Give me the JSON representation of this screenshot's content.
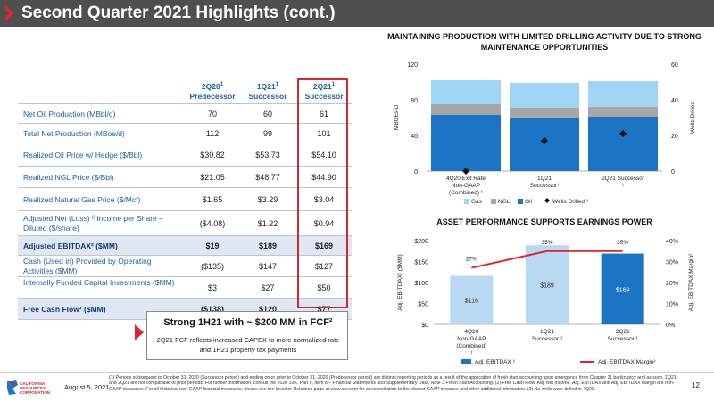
{
  "header": {
    "title": "Second Quarter 2021 Highlights (cont.)"
  },
  "table": {
    "columns": [
      {
        "period": "2Q20",
        "sup": "1",
        "sub": "Predecessor"
      },
      {
        "period": "1Q21",
        "sup": "1",
        "sub": "Successor"
      },
      {
        "period": "2Q21",
        "sup": "1",
        "sub": "Successor"
      }
    ],
    "rows": [
      {
        "label": "Net Oil Production (MBbl/d)",
        "values": [
          "70",
          "60",
          "61"
        ]
      },
      {
        "label": "Total Net Production (MBoe/d)",
        "values": [
          "112",
          "99",
          "101"
        ]
      },
      {
        "label": "Realized Oil Price w/ Hedge ($/Bbl)",
        "values": [
          "$30.82",
          "$53.73",
          "$54.10"
        ]
      },
      {
        "label": "Realized NGL Price ($/Bbl)",
        "values": [
          "$21.05",
          "$48.77",
          "$44.90"
        ]
      },
      {
        "label": "Realized Natural Gas Price ($/Mcf)",
        "values": [
          "$1.65",
          "$3.29",
          "$3.04"
        ]
      },
      {
        "label": "Adjusted Net (Loss) ² Income per Share – Diluted ($/share)",
        "values": [
          "($4.08)",
          "$1.22",
          "$0.94"
        ]
      },
      {
        "label": "Adjusted EBITDAX² ($MM)",
        "values": [
          "$19",
          "$189",
          "$169"
        ]
      },
      {
        "label": "Cash (Used in) Provided by Operating Activities ($MM)",
        "values": [
          "($135)",
          "$147",
          "$127"
        ]
      },
      {
        "label": "Internally Funded Capital Investments ($MM)",
        "values": [
          "$3",
          "$27",
          "$50"
        ]
      },
      {
        "label": "Free Cash Flow² ($MM)",
        "values": [
          "($138)",
          "$120",
          "$77"
        ]
      }
    ]
  },
  "callout": {
    "title": "Strong 1H21 with ~ $200 MM in FCF²",
    "body": "2Q21 FCF reflects increased CAPEX to more normalized rate and 1H21 property tax payments"
  },
  "chart_data": [
    {
      "type": "bar",
      "title": "MAINTAINING PRODUCTION WITH LIMITED DRILLING ACTIVITY DUE TO STRONG MAINTENANCE OPPORTUNITIES",
      "categories": [
        "4Q20 Exit Rate Non-GAAP (Combined) ¹",
        "1Q21 Successor¹",
        "2Q21 Successor ¹"
      ],
      "ylabel": "MBOEPD",
      "y2label": "Wells Drilled",
      "ylim": [
        0,
        120
      ],
      "y2lim": [
        0,
        60
      ],
      "yticks": [
        "0",
        "40",
        "80",
        "120"
      ],
      "y2ticks": [
        "0",
        "20",
        "40",
        "60"
      ],
      "stacked": true,
      "series": [
        {
          "name": "Oil",
          "values": [
            63,
            60,
            61
          ],
          "color": "#1b75c4"
        },
        {
          "name": "NGL",
          "values": [
            12,
            11,
            11
          ],
          "color": "#a6a6a6"
        },
        {
          "name": "Gas",
          "values": [
            27,
            28,
            29
          ],
          "color": "#9fd4f5"
        },
        {
          "name": "Wells Drilled ³",
          "values": [
            0,
            17,
            21
          ],
          "color": "#111111",
          "axis": "right",
          "marker": "diamond"
        }
      ],
      "legend": "bottom"
    },
    {
      "type": "bar",
      "title": "ASSET PERFORMANCE SUPPORTS EARNINGS POWER",
      "categories": [
        "4Q20 Non-GAAP (Combined) ¹",
        "1Q21 Successor ¹",
        "2Q21 Successor ¹"
      ],
      "ylabel": "Adj. EBITDAX² ($MM)",
      "y2label": "Adj. EBITDAX Margin²",
      "ylim": [
        0,
        200
      ],
      "y2lim": [
        0,
        40
      ],
      "yticks": [
        "$0",
        "$50",
        "$100",
        "$150",
        "$200"
      ],
      "y2ticks": [
        "0%",
        "10%",
        "20%",
        "30%",
        "40%"
      ],
      "series": [
        {
          "name": "Adj. EBITDAX ²",
          "values": [
            116,
            189,
            169
          ],
          "labels": [
            "$116",
            "$189",
            "$169"
          ],
          "colors": [
            "#b9d8f1",
            "#b9d8f1",
            "#1b75c4"
          ]
        },
        {
          "name": "Adj. EBITDAX Margin²",
          "values": [
            27,
            35,
            35
          ],
          "labels": [
            "27%",
            "35%",
            "35%"
          ],
          "color": "#e0242b",
          "axis": "right",
          "type": "line"
        }
      ],
      "legend": "bottom"
    }
  ],
  "footer": {
    "logo_text": "CALIFORNIA RESOURCES CORPORATION",
    "date": "August 5, 2021",
    "page": "12",
    "footnote": "(1) Periods subsequent to October 31, 2020 (Successor period) and ending on or prior to October 31, 2020 (Predecessor period) are distinct reporting periods as a result of the application of fresh start accounting upon emergence from Chapter 11 bankruptcy and as such, 1Q21 and 2Q21 are not comparable to prior periods. For further information, consult the 2020 10K, Part II, Item 8 – Financial Statements and Supplementary Data, Note 3 Fresh Start Accounting. (2) Free Cash Flow, Adj. Net Income, Adj. EBITDAX and Adj. EBITDAX Margin are non-GAAP measures. For all historical non-GAAP financial measures, please see the Investor Relations page at www.crc.com for a reconciliation to the closest GAAP measure and other additional information. (3) No wells were drilled in 4Q20."
  }
}
